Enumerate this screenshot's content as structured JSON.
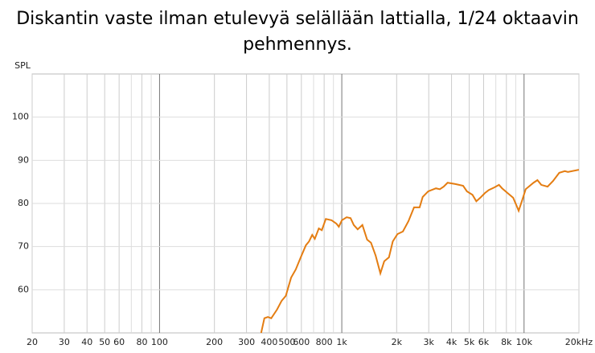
{
  "chart_data": {
    "type": "line",
    "title": "Diskantin vaste ilman etulevyä selällään lattialla, 1/24 oktaavin pehmennys.",
    "y_label": "SPL",
    "log_x": true,
    "grid": true,
    "x_minor_grid": [
      70,
      90,
      700,
      900,
      7000,
      9000
    ],
    "xlim": [
      20,
      20000
    ],
    "ylim": [
      50,
      110
    ],
    "xticks": [
      20,
      30,
      40,
      50,
      60,
      80,
      100,
      200,
      300,
      400,
      500,
      600,
      800,
      {
        "value": 1000,
        "label": "1k"
      },
      {
        "value": 2000,
        "label": "2k"
      },
      {
        "value": 3000,
        "label": "3k"
      },
      {
        "value": 4000,
        "label": "4k"
      },
      {
        "value": 5000,
        "label": "5k"
      },
      {
        "value": 6000,
        "label": "6k"
      },
      {
        "value": 8000,
        "label": "8k"
      },
      {
        "value": 10000,
        "label": "10k"
      },
      {
        "value": 20000,
        "label": "20kHz"
      }
    ],
    "yticks": [
      60,
      70,
      80,
      90,
      100
    ],
    "x": [
      361,
      376,
      393,
      410,
      441,
      467,
      493,
      527,
      559,
      595,
      635,
      661,
      688,
      711,
      748,
      777,
      817,
      879,
      935,
      963,
      1001,
      1063,
      1117,
      1163,
      1222,
      1297,
      1377,
      1446,
      1534,
      1628,
      1709,
      1814,
      1904,
      2020,
      2164,
      2322,
      2491,
      2673,
      2779,
      2979,
      3285,
      3450,
      3623,
      3806,
      4198,
      4630,
      4860,
      5210,
      5470,
      5745,
      6097,
      6402,
      6865,
      7285,
      7580,
      8125,
      8718,
      9070,
      9342,
      9722,
      10210,
      11270,
      11840,
      12430,
      13460,
      14420,
      15600,
      16730,
      17400,
      20000
    ],
    "series": [
      {
        "color": "#e47d12",
        "values": [
          50,
          53.4,
          53.7,
          53.4,
          55.4,
          57.4,
          58.6,
          62.8,
          64.7,
          67.5,
          70.3,
          71.2,
          72.7,
          71.8,
          74.2,
          73.8,
          76.4,
          76.1,
          75.3,
          74.6,
          76.1,
          76.8,
          76.6,
          75.0,
          74.0,
          75.0,
          71.6,
          70.9,
          67.9,
          63.8,
          66.6,
          67.5,
          71.2,
          72.9,
          73.5,
          75.9,
          79.1,
          79.1,
          81.5,
          82.8,
          83.5,
          83.3,
          83.9,
          84.8,
          84.5,
          84.1,
          82.8,
          82.0,
          80.5,
          81.3,
          82.4,
          83.1,
          83.7,
          84.3,
          83.5,
          82.4,
          81.3,
          79.6,
          78.3,
          80.5,
          83.3,
          84.8,
          85.4,
          84.3,
          83.9,
          85.2,
          87.1,
          87.5,
          87.3,
          87.8
        ]
      }
    ]
  }
}
